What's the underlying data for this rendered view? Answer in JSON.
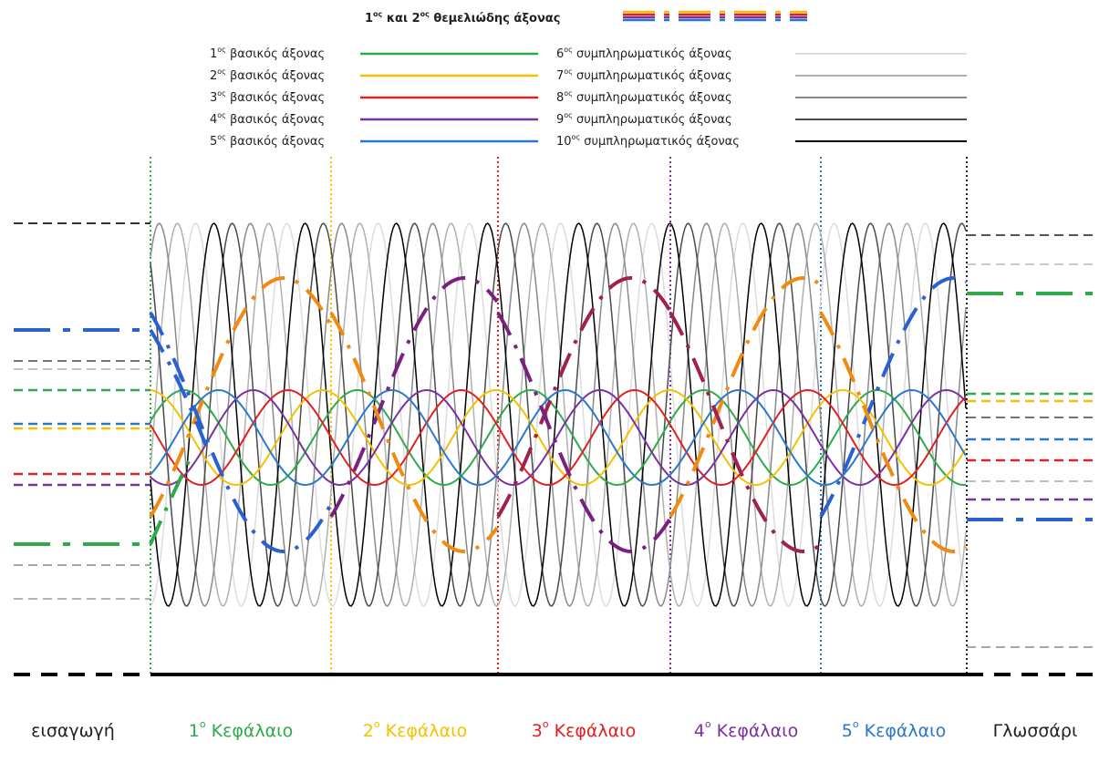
{
  "legend": {
    "title": {
      "n1": "1",
      "s1": "ος",
      "mid": " και 2",
      "s2": "ος",
      "rest": " θεμελιώδης άξονας"
    },
    "entries": [
      {
        "num": "1",
        "sup": "ος",
        "label": " βασικός άξονας"
      },
      {
        "num": "2",
        "sup": "ος",
        "label": " βασικός άξονας"
      },
      {
        "num": "3",
        "sup": "ος",
        "label": " βασικός άξονας"
      },
      {
        "num": "4",
        "sup": "ος",
        "label": " βασικός άξονας"
      },
      {
        "num": "5",
        "sup": "ος",
        "label": " βασικός άξονας"
      },
      {
        "num": "6",
        "sup": "ος",
        "label": " συμπληρωματικός άξονας"
      },
      {
        "num": "7",
        "sup": "ος",
        "label": " συμπληρωματικός άξονας"
      },
      {
        "num": "8",
        "sup": "ος",
        "label": " συμπληρωματικός άξονας"
      },
      {
        "num": "9",
        "sup": "ος",
        "label": " συμπληρωματικός άξονας"
      },
      {
        "num": "10",
        "sup": "ος",
        "label": " συμπληρωματικός άξονας"
      }
    ]
  },
  "sections": [
    {
      "num": "",
      "sup": "",
      "label": "εισαγωγή"
    },
    {
      "num": "1",
      "sup": "ο",
      "label": " Κεφάλαιο"
    },
    {
      "num": "2",
      "sup": "ο",
      "label": " Κεφάλαιο"
    },
    {
      "num": "3",
      "sup": "ο",
      "label": " Κεφάλαιο"
    },
    {
      "num": "4",
      "sup": "ο",
      "label": " Κεφάλαιο"
    },
    {
      "num": "5",
      "sup": "ο",
      "label": " Κεφάλαιο"
    },
    {
      "num": "",
      "sup": "",
      "label": "Γλωσσάρι"
    }
  ]
}
